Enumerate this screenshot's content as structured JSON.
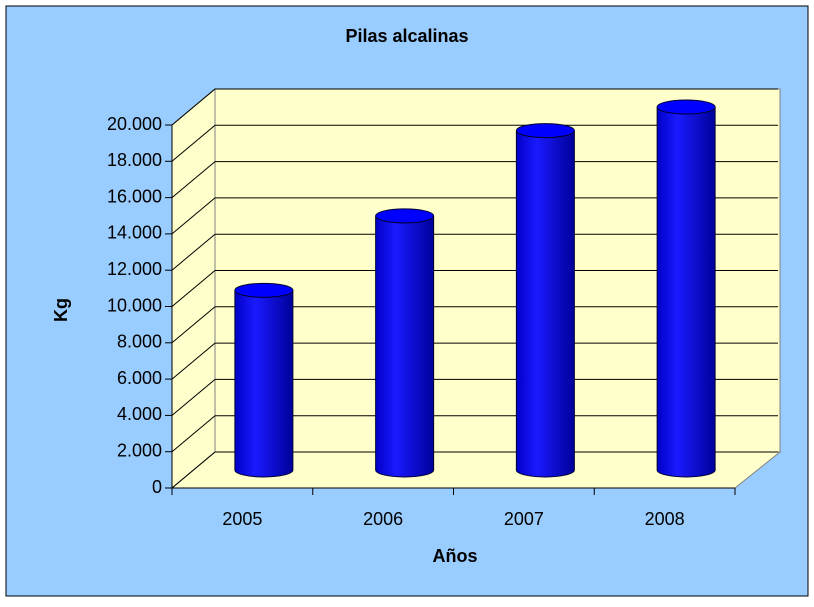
{
  "chart_data": {
    "type": "bar",
    "title": "Pilas alcalinas",
    "x_label": "Años",
    "y_label": "Kg",
    "categories": [
      "2005",
      "2006",
      "2007",
      "2008"
    ],
    "values": [
      9900,
      14000,
      18700,
      20000
    ],
    "color": "#0000ff",
    "ylim": [
      0,
      20000
    ],
    "yticks": [
      0,
      {
        "value": 2000,
        "label": "2.000"
      },
      {
        "value": 4000,
        "label": "4.000"
      },
      {
        "value": 6000,
        "label": "6.000"
      },
      {
        "value": 8000,
        "label": "8.000"
      },
      {
        "value": 10000,
        "label": "10.000"
      },
      {
        "value": 12000,
        "label": "12.000"
      },
      {
        "value": 14000,
        "label": "14.000"
      },
      {
        "value": 16000,
        "label": "16.000"
      },
      {
        "value": 18000,
        "label": "18.000"
      },
      {
        "value": 20000,
        "label": "20.000"
      }
    ],
    "grid": true
  }
}
